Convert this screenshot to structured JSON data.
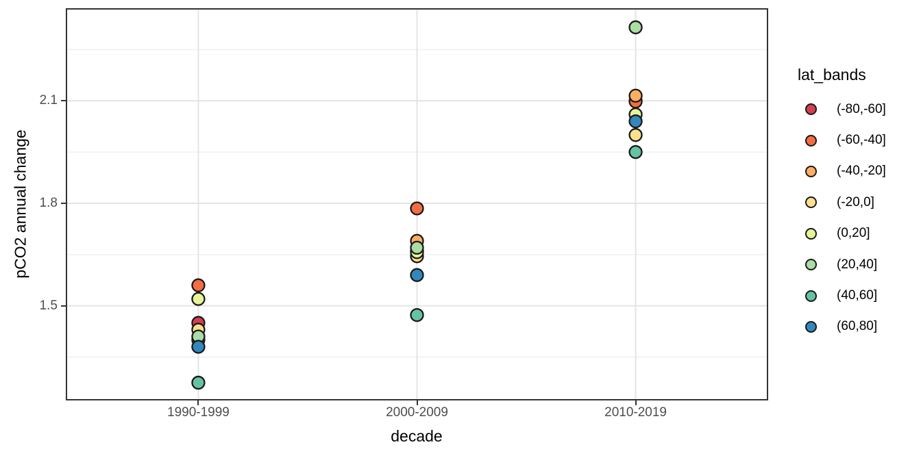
{
  "figure": {
    "background": "#ffffff",
    "panel_border_color": "#333333",
    "tick_text_color": "#4d4d4d",
    "point_outline_color": "#1a1a1a"
  },
  "axes": {
    "x": {
      "title": "decade",
      "tick_labels": [
        "1990-1999",
        "2000-2009",
        "2010-2019"
      ]
    },
    "y": {
      "title": "pCO2 annual change",
      "tick_labels": [
        "1.5",
        "1.8",
        "2.1"
      ]
    }
  },
  "legend": {
    "title": "lat_bands",
    "entries": [
      {
        "label": "(-80,-60]",
        "color": "#D53E4F"
      },
      {
        "label": "(-60,-40]",
        "color": "#F46D43"
      },
      {
        "label": "(-40,-20]",
        "color": "#FDAE61"
      },
      {
        "label": "(-20,0]",
        "color": "#FEE08B"
      },
      {
        "label": "(0,20]",
        "color": "#E6F598"
      },
      {
        "label": "(20,40]",
        "color": "#ABDDA4"
      },
      {
        "label": "(40,60]",
        "color": "#66C2A5"
      },
      {
        "label": "(60,80]",
        "color": "#3288BD"
      }
    ]
  },
  "chart_data": {
    "type": "scatter",
    "title": "",
    "xlabel": "decade",
    "ylabel": "pCO2 annual change",
    "categories": [
      "1990-1999",
      "2000-2009",
      "2010-2019"
    ],
    "legend_title": "lat_bands",
    "legend_position": "right",
    "grid": {
      "major_color": "#E4E4E4",
      "minor_color": "#F0F0F0",
      "grid_on": true
    },
    "ylim": [
      1.227,
      2.367
    ],
    "y_major_ticks": [
      1.5,
      1.8,
      2.1
    ],
    "y_minor_ticks": [
      1.35,
      1.65,
      1.95,
      2.25
    ],
    "series": [
      {
        "name": "(-80,-60]",
        "color": "#D53E4F",
        "values": [
          1.45,
          1.66,
          2.1
        ]
      },
      {
        "name": "(-60,-40]",
        "color": "#F46D43",
        "values": [
          1.56,
          1.785,
          2.098
        ]
      },
      {
        "name": "(-40,-20]",
        "color": "#FDAE61",
        "values": [
          1.4,
          1.69,
          2.115
        ]
      },
      {
        "name": "(-20,0]",
        "color": "#FEE08B",
        "values": [
          1.43,
          1.645,
          2.0
        ]
      },
      {
        "name": "(0,20]",
        "color": "#E6F598",
        "values": [
          1.52,
          1.657,
          2.06
        ]
      },
      {
        "name": "(20,40]",
        "color": "#ABDDA4",
        "values": [
          1.41,
          1.67,
          2.315
        ]
      },
      {
        "name": "(40,60]",
        "color": "#66C2A5",
        "values": [
          1.275,
          1.473,
          1.95
        ]
      },
      {
        "name": "(60,80]",
        "color": "#3288BD",
        "values": [
          1.38,
          1.59,
          2.04
        ]
      }
    ]
  }
}
